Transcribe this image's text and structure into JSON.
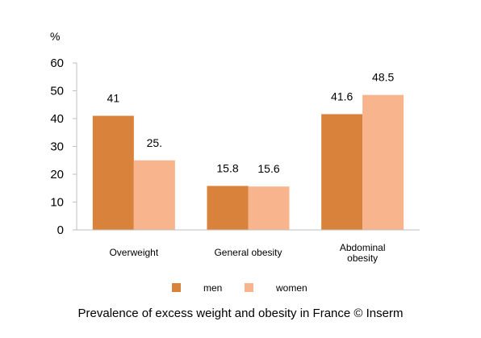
{
  "caption": "Prevalence of excess weight and obesity in France © Inserm",
  "chart_data": {
    "type": "bar",
    "title": "",
    "xlabel": "",
    "ylabel": "%",
    "ylim": [
      0,
      60
    ],
    "yticks": [
      0,
      10,
      20,
      30,
      40,
      50,
      60
    ],
    "grid": false,
    "legend_position": "bottom",
    "categories": [
      [
        "Overweight"
      ],
      [
        "General obesity"
      ],
      [
        "Abdominal",
        "obesity"
      ]
    ],
    "series": [
      {
        "name": "men",
        "color": "#D9823B",
        "values": [
          41,
          15.8,
          41.6
        ],
        "labels": [
          "41",
          "15.8",
          "41.6"
        ]
      },
      {
        "name": "women",
        "color": "#F8B48C",
        "values": [
          25,
          15.6,
          48.5
        ],
        "labels": [
          "25.",
          "15.6",
          "48.5"
        ]
      }
    ]
  }
}
